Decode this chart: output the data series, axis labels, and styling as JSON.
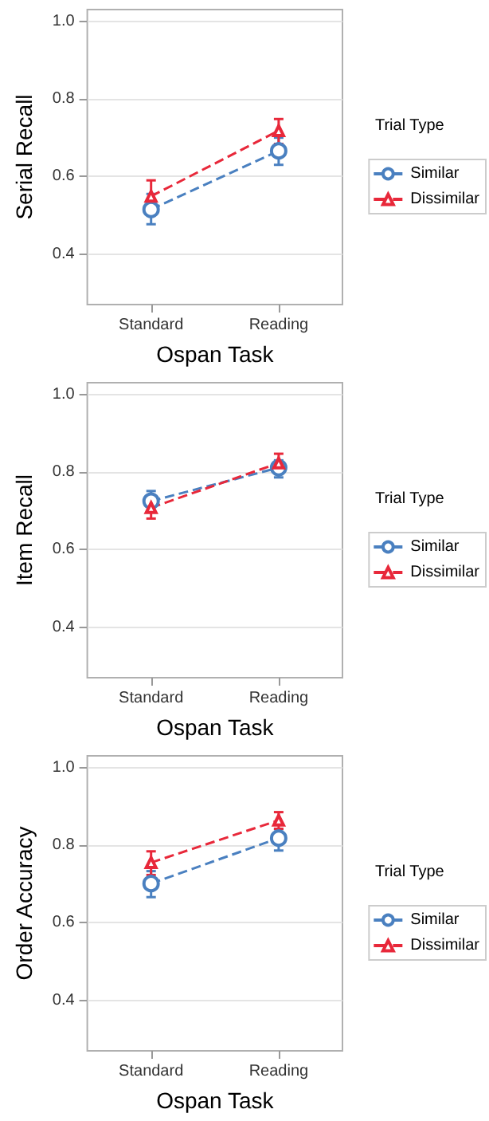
{
  "chart_data": [
    {
      "type": "line",
      "xlabel": "Ospan Task",
      "ylabel": "Serial Recall",
      "legend_title": "Trial Type",
      "categories": [
        "Standard",
        "Reading"
      ],
      "ylim": [
        0.27,
        1.03
      ],
      "yticks": [
        {
          "value": 0.4,
          "label": "0.4"
        },
        {
          "value": 0.6,
          "label": "0.6"
        },
        {
          "value": 0.8,
          "label": "0.8"
        },
        {
          "value": 1,
          "label": "1.0"
        }
      ],
      "grid": "y",
      "legend": "right",
      "line_style": "dashed",
      "series": [
        {
          "name": "Similar",
          "color": "#4a80c0",
          "marker": "circle",
          "values": [
            0.515,
            0.666
          ],
          "errors": [
            [
              0.477,
              0.555
            ],
            [
              0.63,
              0.7
            ]
          ]
        },
        {
          "name": "Dissimilar",
          "color": "#e8283a",
          "marker": "triangle",
          "values": [
            0.549,
            0.718
          ],
          "errors": [
            [
              0.505,
              0.59
            ],
            [
              0.684,
              0.748
            ]
          ]
        }
      ]
    },
    {
      "type": "line",
      "xlabel": "Ospan Task",
      "ylabel": "Item Recall",
      "legend_title": "Trial Type",
      "categories": [
        "Standard",
        "Reading"
      ],
      "ylim": [
        0.27,
        1.03
      ],
      "yticks": [
        {
          "value": 0.4,
          "label": "0.4"
        },
        {
          "value": 0.6,
          "label": "0.6"
        },
        {
          "value": 0.8,
          "label": "0.8"
        },
        {
          "value": 1,
          "label": "1.0"
        }
      ],
      "grid": "y",
      "legend": "right",
      "line_style": "dashed",
      "series": [
        {
          "name": "Similar",
          "color": "#4a80c0",
          "marker": "circle",
          "values": [
            0.725,
            0.811
          ],
          "errors": [
            [
              0.697,
              0.751
            ],
            [
              0.786,
              0.83
            ]
          ]
        },
        {
          "name": "Dissimilar",
          "color": "#e8283a",
          "marker": "triangle",
          "values": [
            0.708,
            0.823
          ],
          "errors": [
            [
              0.68,
              0.74
            ],
            [
              0.803,
              0.847
            ]
          ]
        }
      ]
    },
    {
      "type": "line",
      "xlabel": "Ospan Task",
      "ylabel": "Order Accuracy",
      "legend_title": "Trial Type",
      "categories": [
        "Standard",
        "Reading"
      ],
      "ylim": [
        0.27,
        1.03
      ],
      "yticks": [
        {
          "value": 0.4,
          "label": "0.4"
        },
        {
          "value": 0.6,
          "label": "0.6"
        },
        {
          "value": 0.8,
          "label": "0.8"
        },
        {
          "value": 1,
          "label": "1.0"
        }
      ],
      "grid": "y",
      "legend": "right",
      "line_style": "dashed",
      "series": [
        {
          "name": "Similar",
          "color": "#4a80c0",
          "marker": "circle",
          "values": [
            0.701,
            0.818
          ],
          "errors": [
            [
              0.666,
              0.733
            ],
            [
              0.786,
              0.841
            ]
          ]
        },
        {
          "name": "Dissimilar",
          "color": "#e8283a",
          "marker": "triangle",
          "values": [
            0.755,
            0.864
          ],
          "errors": [
            [
              0.723,
              0.784
            ],
            [
              0.842,
              0.885
            ]
          ]
        }
      ]
    }
  ]
}
